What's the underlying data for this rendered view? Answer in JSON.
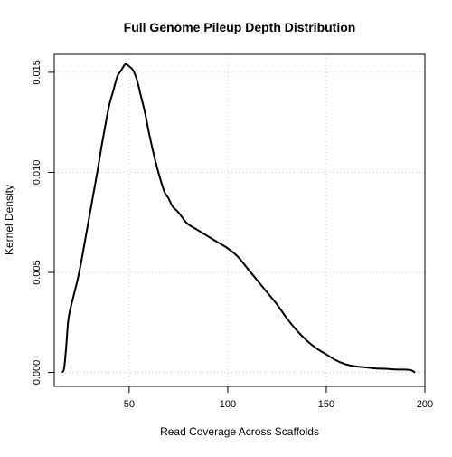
{
  "chart_data": {
    "type": "line",
    "title": "Full Genome Pileup Depth Distribution",
    "xlabel": "Read Coverage Across Scaffolds",
    "ylabel": "Kernel Density",
    "xlim": [
      12,
      200
    ],
    "ylim": [
      -0.0007,
      0.0159
    ],
    "xticks": [
      50,
      100,
      150,
      200
    ],
    "xtick_labels": [
      "50",
      "100",
      "150",
      "200"
    ],
    "yticks": [
      0,
      0.005,
      0.01,
      0.015
    ],
    "ytick_labels": [
      "0.000",
      "0.005",
      "0.010",
      "0.015"
    ],
    "grid": true,
    "series": [
      {
        "color": "#000000",
        "x": [
          16,
          17,
          18,
          19,
          20,
          22,
          24,
          26,
          28,
          30,
          32,
          34,
          36,
          38,
          40,
          42,
          44,
          46,
          48,
          50,
          52,
          54,
          56,
          58,
          60,
          62,
          64,
          66,
          68,
          70,
          72,
          75,
          78,
          80,
          85,
          90,
          95,
          100,
          105,
          110,
          115,
          120,
          125,
          130,
          135,
          140,
          145,
          150,
          155,
          160,
          165,
          170,
          175,
          180,
          185,
          190,
          193,
          195
        ],
        "y": [
          0.0,
          0.0002,
          0.0012,
          0.0025,
          0.0031,
          0.0039,
          0.0047,
          0.0057,
          0.0068,
          0.0079,
          0.009,
          0.0101,
          0.0113,
          0.0124,
          0.0134,
          0.0141,
          0.0148,
          0.0151,
          0.0154,
          0.0153,
          0.0151,
          0.0146,
          0.0138,
          0.013,
          0.012,
          0.0111,
          0.0103,
          0.0096,
          0.009,
          0.0087,
          0.0083,
          0.008,
          0.0076,
          0.0074,
          0.0071,
          0.0068,
          0.0065,
          0.0062,
          0.0058,
          0.0052,
          0.0046,
          0.004,
          0.0034,
          0.0027,
          0.0021,
          0.0016,
          0.0012,
          0.0009,
          0.0006,
          0.0004,
          0.0003,
          0.00025,
          0.0002,
          0.00018,
          0.00015,
          0.00014,
          0.00011,
          0.0
        ]
      }
    ]
  }
}
